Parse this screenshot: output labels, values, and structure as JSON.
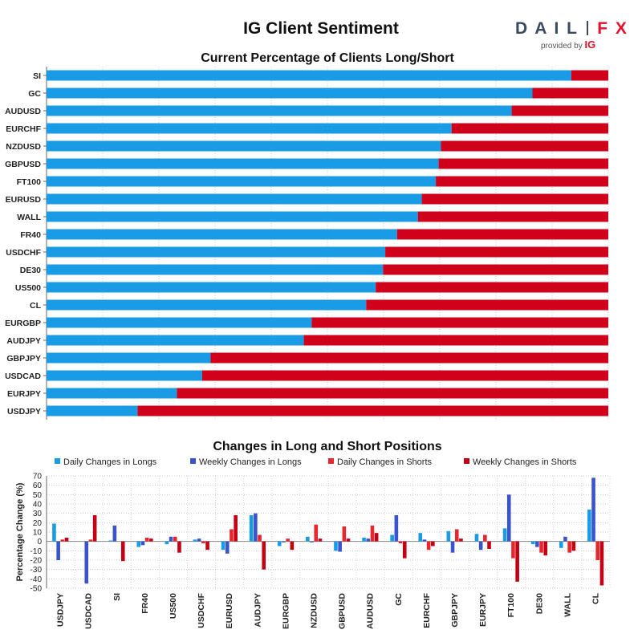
{
  "header": {
    "title": "IG Client Sentiment",
    "logo_text": "DAILYFX",
    "logo_sub": "provided by",
    "logo_brand": "IG"
  },
  "colors": {
    "long": "#1a9be6",
    "short": "#d0021b",
    "daily_long": "#1a9be6",
    "weekly_long": "#3a55cc",
    "daily_short": "#e8262e",
    "weekly_short": "#c40015"
  },
  "chart_data": [
    {
      "type": "bar",
      "orientation": "horizontal",
      "stacked": true,
      "title": "Current Percentage of Clients Long/Short",
      "categories": [
        "SI",
        "GC",
        "AUDUSD",
        "EURCHF",
        "NZDUSD",
        "GBPUSD",
        "FT100",
        "EURUSD",
        "WALL",
        "FR40",
        "USDCHF",
        "DE30",
        "US500",
        "CL",
        "EURGBP",
        "AUDJPY",
        "GBPJPY",
        "USDCAD",
        "EURJPY",
        "USDJPY"
      ],
      "series": [
        {
          "name": "Long",
          "values": [
            93.4,
            86.5,
            82.8,
            72.1,
            70.2,
            69.8,
            69.3,
            66.8,
            66.1,
            62.4,
            60.3,
            59.9,
            58.6,
            56.9,
            47.2,
            45.8,
            29.2,
            27.7,
            23.2,
            16.2
          ]
        },
        {
          "name": "Short",
          "values": [
            6.6,
            13.5,
            17.2,
            27.9,
            29.8,
            30.2,
            30.7,
            33.2,
            33.9,
            37.6,
            39.7,
            40.1,
            41.4,
            43.1,
            52.8,
            54.2,
            70.8,
            72.3,
            76.8,
            83.8
          ]
        }
      ],
      "xlim": [
        0,
        100
      ],
      "grid": true
    },
    {
      "type": "bar",
      "title": "Changes in Long and Short Positions",
      "ylabel": "Percentage Change (%)",
      "ylim": [
        -50,
        70
      ],
      "yticks": [
        -50,
        -40,
        -30,
        -20,
        -10,
        0,
        10,
        20,
        30,
        40,
        50,
        60,
        70
      ],
      "legend_position": "top",
      "grid": true,
      "categories": [
        "USDJPY",
        "USDCAD",
        "SI",
        "FR40",
        "US500",
        "USDCHF",
        "EURUSD",
        "AUDJPY",
        "EURGBP",
        "NZDUSD",
        "GBPUSD",
        "AUDUSD",
        "GC",
        "EURCHF",
        "GBPJPY",
        "EURJPY",
        "FT100",
        "DE30",
        "WALL",
        "CL"
      ],
      "series": [
        {
          "name": "Daily Changes in Longs",
          "values": [
            19,
            0,
            1,
            -6,
            -3,
            2,
            -9,
            28,
            -5,
            5,
            -10,
            4,
            7,
            9,
            11,
            8,
            14,
            -3,
            -7,
            34
          ]
        },
        {
          "name": "Weekly Changes in Longs",
          "values": [
            -20,
            -45,
            17,
            -4,
            5,
            3,
            -13,
            30,
            -1,
            -1,
            -11,
            3,
            28,
            2,
            -12,
            -9,
            50,
            -6,
            5,
            68
          ]
        },
        {
          "name": "Daily Changes in Shorts",
          "values": [
            2,
            2,
            0,
            4,
            5,
            -2,
            13,
            7,
            3,
            18,
            16,
            17,
            -2,
            -9,
            13,
            7,
            -18,
            -12,
            -12,
            -20
          ]
        },
        {
          "name": "Weekly Changes in Shorts",
          "values": [
            4,
            28,
            -21,
            3,
            -12,
            -9,
            28,
            -30,
            -9,
            3,
            3,
            9,
            -18,
            -5,
            3,
            -8,
            -43,
            -15,
            -10,
            -47
          ]
        }
      ]
    }
  ]
}
